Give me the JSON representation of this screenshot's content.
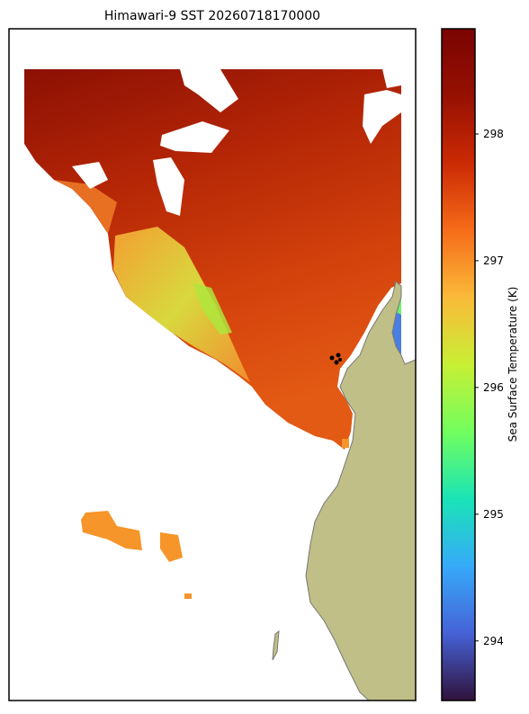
{
  "title": "Himawari-9 SST 20260718170000",
  "colorbar": {
    "label": "Sea Surface Temperature (K)",
    "lim": [
      293.53,
      298.83
    ],
    "ticks": [
      294,
      295,
      296,
      297,
      298
    ]
  }
}
